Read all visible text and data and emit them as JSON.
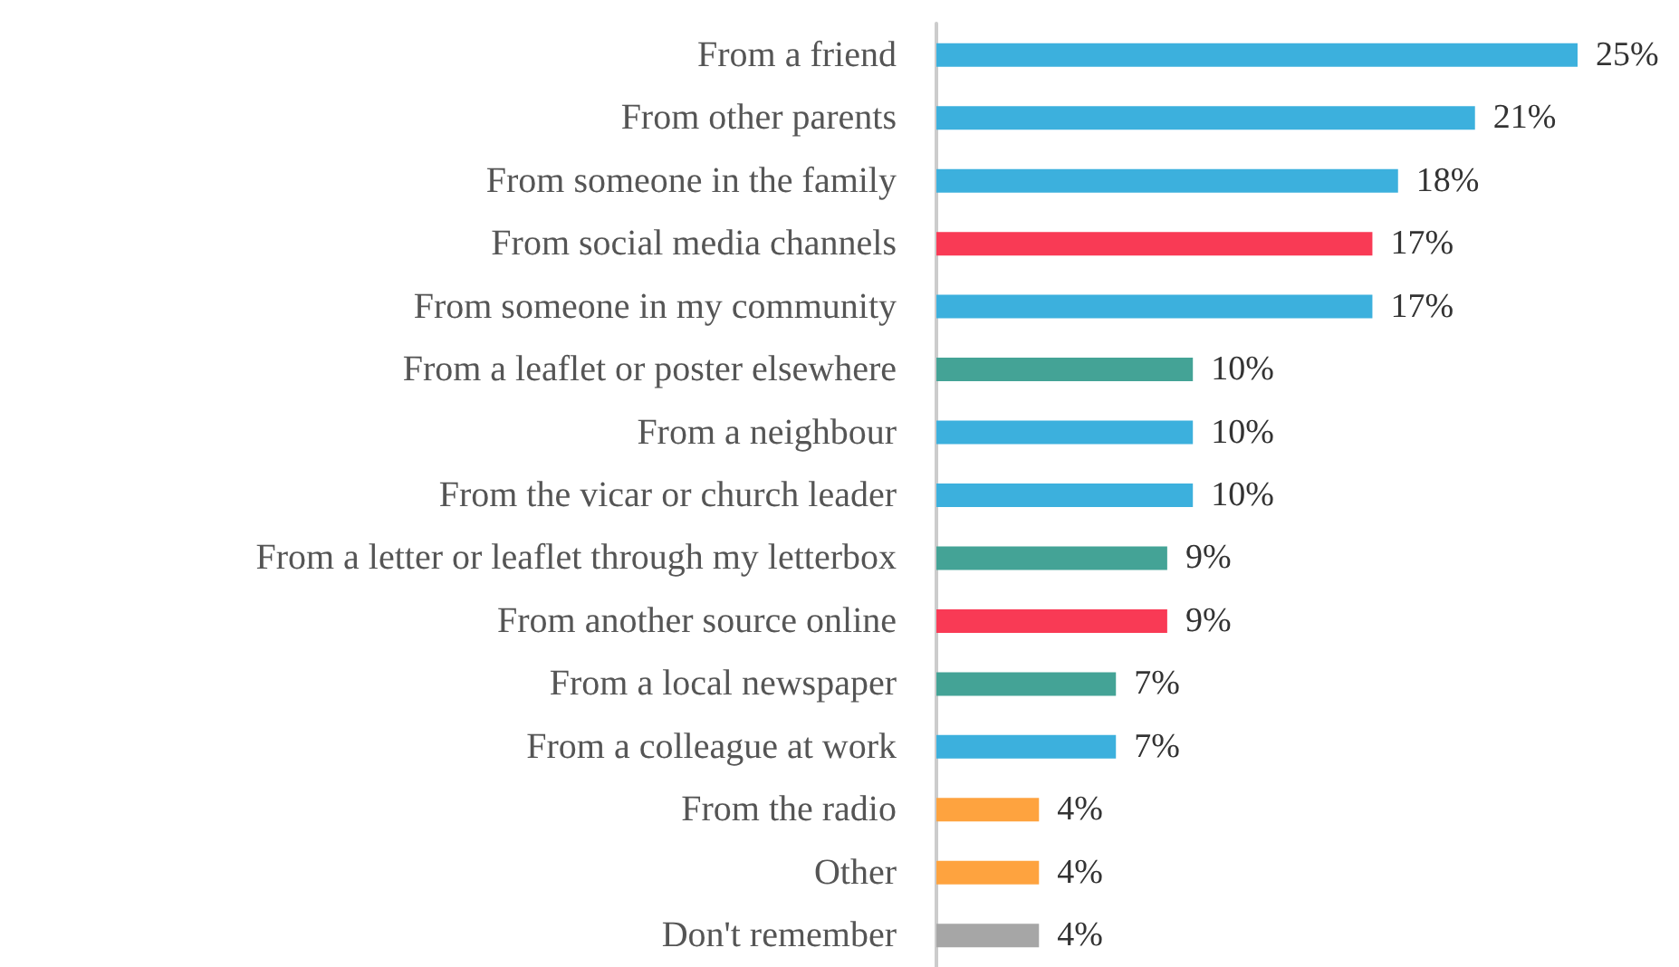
{
  "chart_data": {
    "type": "bar",
    "orientation": "horizontal",
    "categories": [
      "From a friend",
      "From other parents",
      "From someone in the family",
      "From social media channels",
      "From someone in my community",
      "From a leaflet or poster elsewhere",
      "From a neighbour",
      "From the vicar or church leader",
      "From a letter or leaflet through my letterbox",
      "From another source online",
      "From a local newspaper",
      "From a colleague at work",
      "From the radio",
      "Other",
      "Don't remember"
    ],
    "values": [
      25,
      21,
      18,
      17,
      17,
      10,
      10,
      10,
      9,
      9,
      7,
      7,
      4,
      4,
      4
    ],
    "value_labels": [
      "25%",
      "21%",
      "18%",
      "17%",
      "17%",
      "10%",
      "10%",
      "10%",
      "9%",
      "9%",
      "7%",
      "7%",
      "4%",
      "4%",
      "4%"
    ],
    "colors": [
      "#3cb0dd",
      "#3cb0dd",
      "#3cb0dd",
      "#f93a55",
      "#3cb0dd",
      "#44a396",
      "#3cb0dd",
      "#3cb0dd",
      "#44a396",
      "#f93a55",
      "#44a396",
      "#3cb0dd",
      "#fea33f",
      "#fea33f",
      "#a6a6a6"
    ]
  }
}
